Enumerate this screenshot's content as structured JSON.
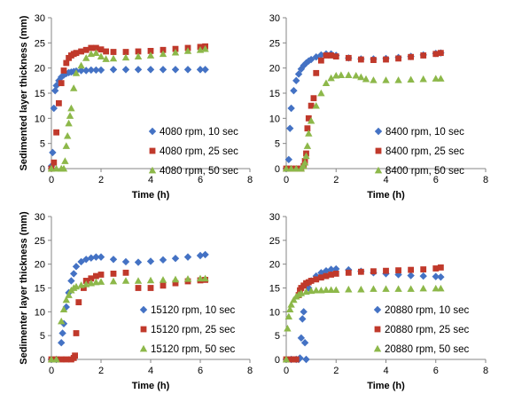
{
  "figure": {
    "panels": [
      {
        "xlabel": "Time (h)",
        "ylabel": "Sedimented layer thickness (mm)"
      },
      {
        "xlabel": "Time (h)",
        "ylabel": ""
      },
      {
        "xlabel": "Time (h)",
        "ylabel": "Sedimenter layer thickness (mm)"
      },
      {
        "xlabel": "Time (h)",
        "ylabel": ""
      }
    ]
  },
  "colors": {
    "series_1": "#4472C4",
    "series_2": "#C0392B",
    "series_3": "#8DB84A"
  },
  "chart_data": [
    {
      "type": "scatter",
      "xlabel": "Time (h)",
      "ylabel": "Sedimented layer thickness (mm)",
      "xlim": [
        0,
        8
      ],
      "ylim": [
        0,
        30
      ],
      "xticks": [
        0,
        2,
        4,
        6,
        8
      ],
      "yticks": [
        0,
        5,
        10,
        15,
        20,
        25,
        30
      ],
      "legend_position": "right-middle",
      "series": [
        {
          "name": "4080 rpm, 10 sec",
          "marker": "diamond",
          "x": [
            0.0,
            0.05,
            0.1,
            0.15,
            0.2,
            0.3,
            0.4,
            0.5,
            0.6,
            0.7,
            0.8,
            0.9,
            1.0,
            1.2,
            1.4,
            1.6,
            1.8,
            2.0,
            2.5,
            3.0,
            3.5,
            4.0,
            4.5,
            5.0,
            5.5,
            6.0,
            6.2
          ],
          "y": [
            0.5,
            3.2,
            12.0,
            15.5,
            16.5,
            17.5,
            18.2,
            18.6,
            18.9,
            19.1,
            19.2,
            19.3,
            19.4,
            19.5,
            19.5,
            19.6,
            19.6,
            19.6,
            19.7,
            19.7,
            19.7,
            19.7,
            19.7,
            19.7,
            19.7,
            19.7,
            19.7
          ]
        },
        {
          "name": "4080 rpm, 25 sec",
          "marker": "square",
          "x": [
            0.0,
            0.1,
            0.2,
            0.3,
            0.4,
            0.5,
            0.6,
            0.7,
            0.8,
            0.9,
            1.0,
            1.2,
            1.4,
            1.6,
            1.8,
            2.0,
            2.2,
            2.5,
            3.0,
            3.5,
            4.0,
            4.5,
            5.0,
            5.5,
            6.0,
            6.2
          ],
          "y": [
            0.0,
            1.2,
            7.2,
            13.0,
            17.0,
            19.5,
            21.0,
            22.0,
            22.5,
            22.8,
            23.0,
            23.3,
            23.6,
            24.0,
            24.0,
            23.7,
            23.3,
            23.2,
            23.2,
            23.3,
            23.4,
            23.6,
            23.8,
            24.0,
            24.2,
            24.3
          ]
        },
        {
          "name": "4080 rpm, 50 sec",
          "marker": "triangle",
          "x": [
            0.0,
            0.2,
            0.4,
            0.5,
            0.55,
            0.6,
            0.65,
            0.7,
            0.75,
            0.8,
            0.9,
            1.0,
            1.2,
            1.4,
            1.6,
            1.8,
            2.0,
            2.2,
            2.5,
            3.0,
            3.5,
            4.0,
            4.5,
            5.0,
            5.5,
            6.0,
            6.2
          ],
          "y": [
            0.0,
            0.0,
            0.0,
            0.0,
            1.5,
            4.5,
            6.5,
            9.0,
            10.5,
            12.0,
            16.0,
            19.0,
            20.5,
            22.0,
            22.8,
            23.0,
            22.3,
            21.8,
            21.9,
            22.1,
            22.3,
            22.5,
            22.8,
            23.1,
            23.4,
            23.6,
            23.8
          ]
        }
      ]
    },
    {
      "type": "scatter",
      "xlabel": "Time (h)",
      "ylabel": "",
      "xlim": [
        0,
        8
      ],
      "ylim": [
        0,
        30
      ],
      "xticks": [
        0,
        2,
        4,
        6,
        8
      ],
      "yticks": [
        0,
        5,
        10,
        15,
        20,
        25,
        30
      ],
      "legend_position": "right-middle",
      "series": [
        {
          "name": "8400 rpm, 10 sec",
          "marker": "diamond",
          "x": [
            0.0,
            0.1,
            0.15,
            0.2,
            0.3,
            0.4,
            0.5,
            0.6,
            0.7,
            0.8,
            0.9,
            1.0,
            1.2,
            1.4,
            1.6,
            1.8,
            2.0,
            2.5,
            3.0,
            3.5,
            4.0,
            4.5,
            5.0,
            5.5,
            6.0,
            6.2
          ],
          "y": [
            0.0,
            1.8,
            8.0,
            12.0,
            15.5,
            17.5,
            18.8,
            19.8,
            20.5,
            21.0,
            21.4,
            21.7,
            22.2,
            22.6,
            22.8,
            22.8,
            22.5,
            22.0,
            21.8,
            21.8,
            21.9,
            22.1,
            22.3,
            22.6,
            22.9,
            23.0
          ]
        },
        {
          "name": "8400 rpm, 25 sec",
          "marker": "square",
          "x": [
            0.0,
            0.2,
            0.4,
            0.6,
            0.7,
            0.75,
            0.8,
            0.85,
            0.9,
            1.0,
            1.1,
            1.2,
            1.4,
            1.6,
            1.8,
            2.0,
            2.5,
            3.0,
            3.5,
            4.0,
            4.5,
            5.0,
            5.5,
            6.0,
            6.2
          ],
          "y": [
            0.0,
            0.0,
            0.0,
            0.0,
            0.5,
            1.5,
            3.0,
            8.0,
            10.0,
            12.5,
            14.0,
            19.0,
            21.5,
            22.5,
            22.5,
            22.3,
            22.0,
            21.7,
            21.6,
            21.7,
            21.9,
            22.2,
            22.5,
            22.8,
            23.0
          ]
        },
        {
          "name": "8400 rpm, 50 sec",
          "marker": "triangle",
          "x": [
            0.0,
            0.2,
            0.4,
            0.6,
            0.7,
            0.75,
            0.8,
            0.85,
            0.9,
            1.0,
            1.2,
            1.4,
            1.6,
            1.8,
            2.0,
            2.2,
            2.5,
            2.8,
            3.0,
            3.2,
            3.5,
            4.0,
            4.5,
            5.0,
            5.5,
            6.0,
            6.2
          ],
          "y": [
            0.0,
            0.0,
            0.0,
            0.0,
            0.5,
            1.2,
            2.5,
            4.5,
            7.0,
            9.5,
            12.5,
            15.0,
            17.0,
            18.0,
            18.5,
            18.6,
            18.6,
            18.5,
            18.2,
            17.8,
            17.6,
            17.6,
            17.6,
            17.7,
            17.8,
            17.9,
            17.9
          ]
        }
      ]
    },
    {
      "type": "scatter",
      "xlabel": "Time (h)",
      "ylabel": "Sedimenter layer thickness (mm)",
      "xlim": [
        0,
        8
      ],
      "ylim": [
        0,
        30
      ],
      "xticks": [
        0,
        2,
        4,
        6,
        8
      ],
      "yticks": [
        0,
        5,
        10,
        15,
        20,
        25,
        30
      ],
      "legend_position": "right-bottom",
      "series": [
        {
          "name": "15120 rpm, 10 sec",
          "marker": "diamond",
          "x": [
            0.0,
            0.2,
            0.4,
            0.45,
            0.5,
            0.6,
            0.7,
            0.8,
            0.9,
            1.0,
            1.2,
            1.4,
            1.6,
            1.8,
            2.0,
            2.5,
            3.0,
            3.5,
            4.0,
            4.5,
            5.0,
            5.5,
            6.0,
            6.2
          ],
          "y": [
            0.0,
            0.0,
            3.5,
            5.5,
            7.5,
            11.0,
            14.0,
            16.5,
            18.0,
            19.5,
            20.5,
            21.0,
            21.3,
            21.5,
            21.5,
            21.0,
            20.5,
            20.4,
            20.6,
            20.9,
            21.2,
            21.5,
            21.8,
            22.0
          ]
        },
        {
          "name": "15120 rpm, 25 sec",
          "marker": "square",
          "x": [
            0.0,
            0.2,
            0.4,
            0.6,
            0.8,
            0.9,
            0.95,
            1.0,
            1.1,
            1.3,
            1.4,
            1.6,
            1.8,
            2.0,
            2.5,
            3.0,
            3.5,
            4.0,
            4.5,
            5.0,
            5.5,
            6.0,
            6.2
          ],
          "y": [
            0.0,
            0.0,
            0.0,
            0.0,
            0.0,
            0.3,
            0.8,
            5.5,
            12.0,
            15.0,
            16.5,
            17.0,
            17.5,
            17.8,
            18.0,
            18.2,
            15.0,
            15.0,
            15.5,
            16.0,
            16.4,
            16.6,
            16.7
          ]
        },
        {
          "name": "15120 rpm, 50 sec",
          "marker": "triangle",
          "x": [
            0.0,
            0.2,
            0.4,
            0.5,
            0.6,
            0.7,
            0.8,
            0.9,
            1.0,
            1.2,
            1.4,
            1.6,
            1.8,
            2.0,
            2.5,
            3.0,
            3.5,
            4.0,
            4.5,
            5.0,
            5.5,
            6.0,
            6.2
          ],
          "y": [
            0.0,
            0.0,
            8.0,
            10.5,
            12.5,
            13.5,
            14.5,
            15.0,
            15.3,
            15.6,
            15.8,
            16.0,
            16.2,
            16.3,
            16.4,
            16.5,
            16.5,
            16.6,
            16.7,
            16.8,
            16.9,
            17.0,
            17.0
          ]
        }
      ]
    },
    {
      "type": "scatter",
      "xlabel": "Time (h)",
      "ylabel": "",
      "xlim": [
        0,
        8
      ],
      "ylim": [
        0,
        30
      ],
      "xticks": [
        0,
        2,
        4,
        6,
        8
      ],
      "yticks": [
        0,
        5,
        10,
        15,
        20,
        25,
        30
      ],
      "legend_position": "right-bottom",
      "series": [
        {
          "name": "20880 rpm, 10 sec",
          "marker": "diamond",
          "x": [
            0.0,
            0.2,
            0.4,
            0.5,
            0.55,
            0.6,
            0.65,
            0.7,
            0.75,
            0.8,
            0.9,
            1.0,
            1.2,
            1.4,
            1.6,
            1.8,
            2.0,
            2.5,
            3.0,
            3.5,
            4.0,
            4.5,
            5.0,
            5.5,
            6.0,
            6.2
          ],
          "y": [
            0.0,
            0.0,
            0.0,
            0.0,
            0.3,
            4.5,
            8.5,
            10.0,
            3.5,
            0.0,
            15.0,
            16.5,
            17.5,
            18.2,
            18.6,
            18.9,
            19.0,
            18.8,
            18.5,
            18.2,
            18.0,
            17.8,
            17.6,
            17.5,
            17.4,
            17.3
          ]
        },
        {
          "name": "20880 rpm, 25 sec",
          "marker": "square",
          "x": [
            0.0,
            0.2,
            0.3,
            0.4,
            0.5,
            0.55,
            0.6,
            0.7,
            0.8,
            0.9,
            1.0,
            1.2,
            1.4,
            1.6,
            1.8,
            2.0,
            2.5,
            3.0,
            3.5,
            4.0,
            4.5,
            5.0,
            5.5,
            6.0,
            6.2
          ],
          "y": [
            0.0,
            0.0,
            0.0,
            0.0,
            13.5,
            14.5,
            15.0,
            15.5,
            16.0,
            16.2,
            16.5,
            16.8,
            17.2,
            17.5,
            17.8,
            18.0,
            18.2,
            18.4,
            18.5,
            18.6,
            18.7,
            18.8,
            18.9,
            19.1,
            19.3
          ]
        },
        {
          "name": "20880 rpm, 50 sec",
          "marker": "triangle",
          "x": [
            0.0,
            0.05,
            0.1,
            0.15,
            0.2,
            0.3,
            0.4,
            0.5,
            0.6,
            0.8,
            1.0,
            1.2,
            1.4,
            1.6,
            1.8,
            2.0,
            2.5,
            3.0,
            3.5,
            4.0,
            4.5,
            5.0,
            5.5,
            6.0,
            6.2
          ],
          "y": [
            0.0,
            6.5,
            9.0,
            10.5,
            11.5,
            12.5,
            13.2,
            13.6,
            13.9,
            14.2,
            14.4,
            14.5,
            14.5,
            14.6,
            14.6,
            14.6,
            14.7,
            14.7,
            14.8,
            14.8,
            14.8,
            14.8,
            14.9,
            14.9,
            14.9
          ]
        }
      ]
    }
  ]
}
